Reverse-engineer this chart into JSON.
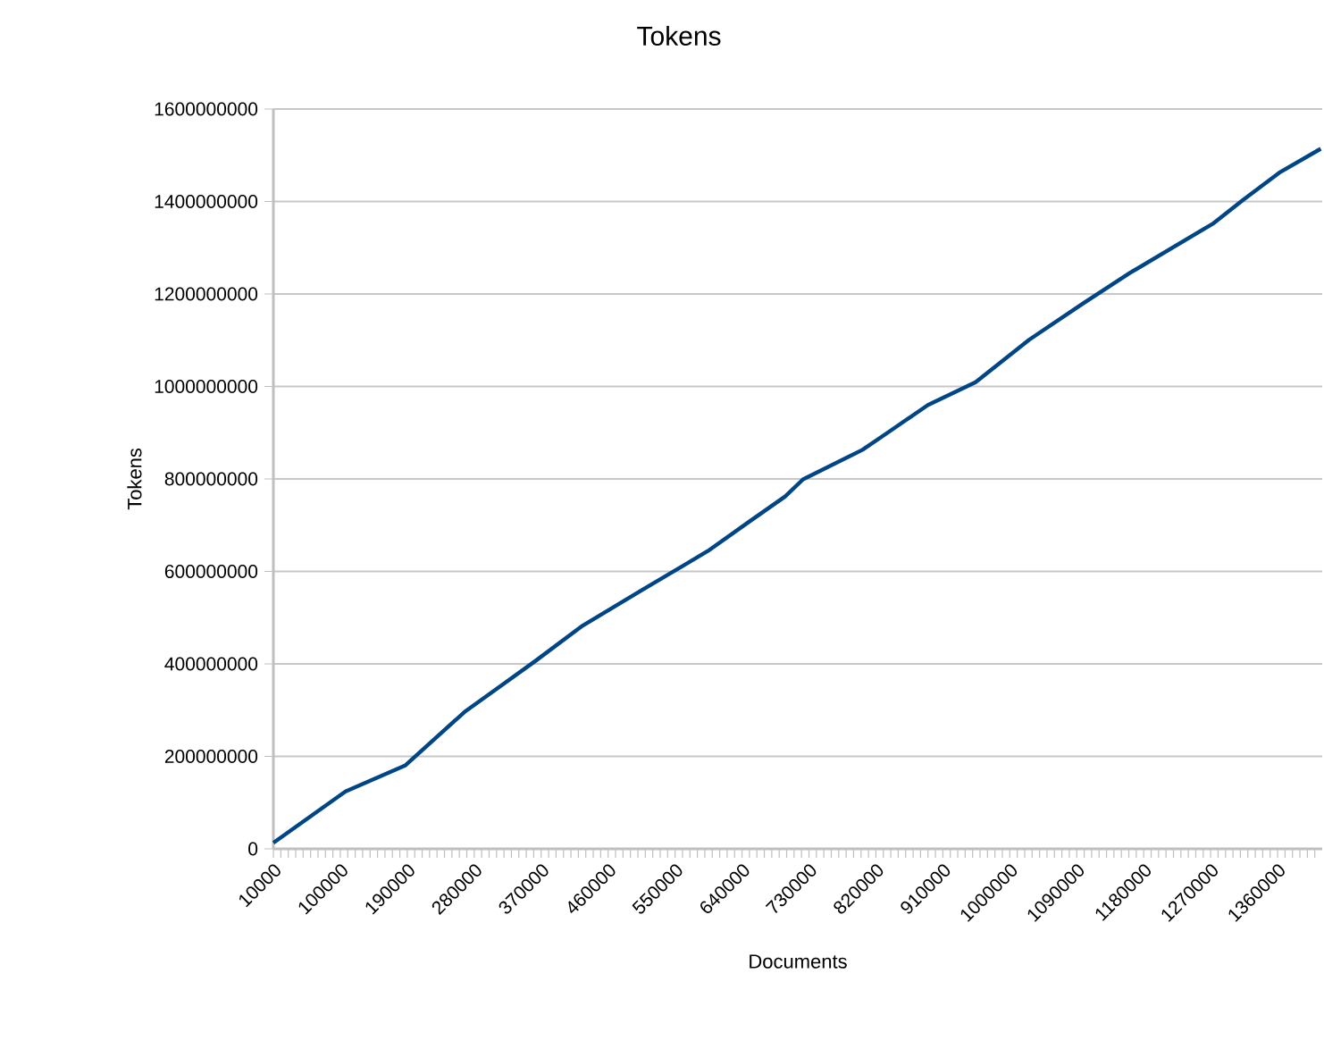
{
  "chart_data": {
    "type": "line",
    "title": "Tokens",
    "xlabel": "Documents",
    "ylabel": "Tokens",
    "x": [
      10000,
      107000,
      187000,
      267000,
      362000,
      426000,
      506000,
      594000,
      650000,
      698000,
      722000,
      802000,
      834000,
      890000,
      954000,
      1026000,
      1098000,
      1162000,
      1274000,
      1314000,
      1362000,
      1418000
    ],
    "series": [
      {
        "color": "#004586",
        "values": [
          13000000,
          124000000,
          180000000,
          296000000,
          406000000,
          483000000,
          560000000,
          644000000,
          708000000,
          762000000,
          799000000,
          863000000,
          898000000,
          960000000,
          1009000000,
          1101000000,
          1179000000,
          1246000000,
          1353000000,
          1404000000,
          1462000000,
          1514000000
        ]
      }
    ],
    "xlim": [
      10000,
      1420000
    ],
    "xticks": [
      10000,
      {
        "value": 20000,
        "label": null
      },
      {
        "value": 30000,
        "label": null
      },
      {
        "value": 40000,
        "label": null
      },
      {
        "value": 50000,
        "label": null
      },
      {
        "value": 60000,
        "label": null
      },
      {
        "value": 70000,
        "label": null
      },
      {
        "value": 80000,
        "label": null
      },
      {
        "value": 90000,
        "label": null
      },
      100000,
      {
        "value": 110000,
        "label": null
      },
      {
        "value": 120000,
        "label": null
      },
      {
        "value": 130000,
        "label": null
      },
      {
        "value": 140000,
        "label": null
      },
      {
        "value": 150000,
        "label": null
      },
      {
        "value": 160000,
        "label": null
      },
      {
        "value": 170000,
        "label": null
      },
      {
        "value": 180000,
        "label": null
      },
      190000,
      {
        "value": 200000,
        "label": null
      },
      {
        "value": 210000,
        "label": null
      },
      {
        "value": 220000,
        "label": null
      },
      {
        "value": 230000,
        "label": null
      },
      {
        "value": 240000,
        "label": null
      },
      {
        "value": 250000,
        "label": null
      },
      {
        "value": 260000,
        "label": null
      },
      {
        "value": 270000,
        "label": null
      },
      280000,
      {
        "value": 290000,
        "label": null
      },
      {
        "value": 300000,
        "label": null
      },
      {
        "value": 310000,
        "label": null
      },
      {
        "value": 320000,
        "label": null
      },
      {
        "value": 330000,
        "label": null
      },
      {
        "value": 340000,
        "label": null
      },
      {
        "value": 350000,
        "label": null
      },
      {
        "value": 360000,
        "label": null
      },
      370000,
      {
        "value": 380000,
        "label": null
      },
      {
        "value": 390000,
        "label": null
      },
      {
        "value": 400000,
        "label": null
      },
      {
        "value": 410000,
        "label": null
      },
      {
        "value": 420000,
        "label": null
      },
      {
        "value": 430000,
        "label": null
      },
      {
        "value": 440000,
        "label": null
      },
      {
        "value": 450000,
        "label": null
      },
      460000,
      {
        "value": 470000,
        "label": null
      },
      {
        "value": 480000,
        "label": null
      },
      {
        "value": 490000,
        "label": null
      },
      {
        "value": 500000,
        "label": null
      },
      {
        "value": 510000,
        "label": null
      },
      {
        "value": 520000,
        "label": null
      },
      {
        "value": 530000,
        "label": null
      },
      {
        "value": 540000,
        "label": null
      },
      550000,
      {
        "value": 560000,
        "label": null
      },
      {
        "value": 570000,
        "label": null
      },
      {
        "value": 580000,
        "label": null
      },
      {
        "value": 590000,
        "label": null
      },
      {
        "value": 600000,
        "label": null
      },
      {
        "value": 610000,
        "label": null
      },
      {
        "value": 620000,
        "label": null
      },
      {
        "value": 630000,
        "label": null
      },
      640000,
      {
        "value": 650000,
        "label": null
      },
      {
        "value": 660000,
        "label": null
      },
      {
        "value": 670000,
        "label": null
      },
      {
        "value": 680000,
        "label": null
      },
      {
        "value": 690000,
        "label": null
      },
      {
        "value": 700000,
        "label": null
      },
      {
        "value": 710000,
        "label": null
      },
      {
        "value": 720000,
        "label": null
      },
      730000,
      {
        "value": 740000,
        "label": null
      },
      {
        "value": 750000,
        "label": null
      },
      {
        "value": 760000,
        "label": null
      },
      {
        "value": 770000,
        "label": null
      },
      {
        "value": 780000,
        "label": null
      },
      {
        "value": 790000,
        "label": null
      },
      {
        "value": 800000,
        "label": null
      },
      {
        "value": 810000,
        "label": null
      },
      820000,
      {
        "value": 830000,
        "label": null
      },
      {
        "value": 840000,
        "label": null
      },
      {
        "value": 850000,
        "label": null
      },
      {
        "value": 860000,
        "label": null
      },
      {
        "value": 870000,
        "label": null
      },
      {
        "value": 880000,
        "label": null
      },
      {
        "value": 890000,
        "label": null
      },
      {
        "value": 900000,
        "label": null
      },
      910000,
      {
        "value": 920000,
        "label": null
      },
      {
        "value": 930000,
        "label": null
      },
      {
        "value": 940000,
        "label": null
      },
      {
        "value": 950000,
        "label": null
      },
      {
        "value": 960000,
        "label": null
      },
      {
        "value": 970000,
        "label": null
      },
      {
        "value": 980000,
        "label": null
      },
      {
        "value": 990000,
        "label": null
      },
      1000000,
      {
        "value": 1010000,
        "label": null
      },
      {
        "value": 1020000,
        "label": null
      },
      {
        "value": 1030000,
        "label": null
      },
      {
        "value": 1040000,
        "label": null
      },
      {
        "value": 1050000,
        "label": null
      },
      {
        "value": 1060000,
        "label": null
      },
      {
        "value": 1070000,
        "label": null
      },
      {
        "value": 1080000,
        "label": null
      },
      1090000,
      {
        "value": 1100000,
        "label": null
      },
      {
        "value": 1110000,
        "label": null
      },
      {
        "value": 1120000,
        "label": null
      },
      {
        "value": 1130000,
        "label": null
      },
      {
        "value": 1140000,
        "label": null
      },
      {
        "value": 1150000,
        "label": null
      },
      {
        "value": 1160000,
        "label": null
      },
      {
        "value": 1170000,
        "label": null
      },
      1180000,
      {
        "value": 1190000,
        "label": null
      },
      {
        "value": 1200000,
        "label": null
      },
      {
        "value": 1210000,
        "label": null
      },
      {
        "value": 1220000,
        "label": null
      },
      {
        "value": 1230000,
        "label": null
      },
      {
        "value": 1240000,
        "label": null
      },
      {
        "value": 1250000,
        "label": null
      },
      {
        "value": 1260000,
        "label": null
      },
      1270000,
      {
        "value": 1280000,
        "label": null
      },
      {
        "value": 1290000,
        "label": null
      },
      {
        "value": 1300000,
        "label": null
      },
      {
        "value": 1310000,
        "label": null
      },
      {
        "value": 1320000,
        "label": null
      },
      {
        "value": 1330000,
        "label": null
      },
      {
        "value": 1340000,
        "label": null
      },
      {
        "value": 1350000,
        "label": null
      },
      1360000,
      {
        "value": 1370000,
        "label": null
      },
      {
        "value": 1380000,
        "label": null
      },
      {
        "value": 1390000,
        "label": null
      },
      {
        "value": 1400000,
        "label": null
      },
      {
        "value": 1410000,
        "label": null
      }
    ],
    "ylim": [
      0,
      1600000000
    ],
    "yticks": [
      0,
      200000000,
      400000000,
      600000000,
      800000000,
      1000000000,
      1200000000,
      1400000000,
      1600000000
    ],
    "grid": "y",
    "marker": "none",
    "line_style": "solid"
  }
}
